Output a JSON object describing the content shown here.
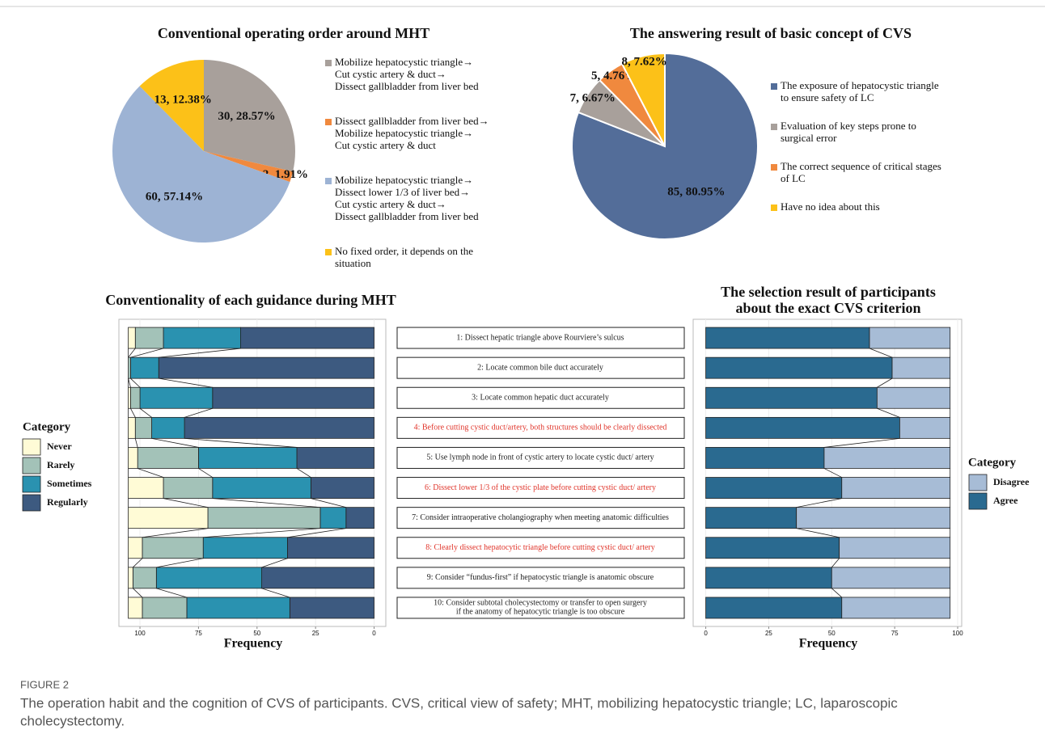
{
  "chart_data": [
    {
      "type": "pie",
      "title": "Conventional operating order around MHT",
      "categories": [
        [
          "Mobilize hepatocystic triangle→",
          "Cut cystic artery & duct→",
          "Dissect gallbladder from liver bed"
        ],
        [
          "Dissect gallbladder from liver bed→",
          "Mobilize hepatocystic triangle→",
          "Cut cystic artery & duct"
        ],
        [
          "Mobilize hepatocystic triangle→",
          "Dissect lower 1/3 of liver bed→",
          "Cut cystic artery & duct→",
          "Dissect gallbladder from liver bed"
        ],
        [
          "No fixed order, it depends on the",
          "situation"
        ]
      ],
      "values": [
        30,
        2,
        60,
        13
      ],
      "value_labels": [
        "30, 28.57%",
        "2, 1.91%",
        "60, 57.14%",
        "13, 12.38%"
      ],
      "colors": [
        "#a8a09b",
        "#f0893e",
        "#9db3d4",
        "#fcc118"
      ]
    },
    {
      "type": "pie",
      "title": "The answering result of basic concept of CVS",
      "categories": [
        [
          "The exposure of hepatocystic triangle",
          "to ensure safety of LC"
        ],
        [
          "Evaluation of key steps prone to",
          "surgical error"
        ],
        [
          "The correct sequence of critical stages",
          "of LC"
        ],
        [
          "Have no idea about this"
        ]
      ],
      "values": [
        85,
        7,
        5,
        8
      ],
      "value_labels": [
        "85, 80.95%",
        "7, 6.67%",
        "5, 4.76%",
        "8, 7.62%"
      ],
      "colors": [
        "#536d99",
        "#a8a09b",
        "#f0893e",
        "#fcc118"
      ]
    },
    {
      "type": "stacked_bar",
      "title": "Conventionality of each guidance during MHT",
      "x_label": "Frequency",
      "legend_title": "Category",
      "categories": [
        [
          "1: Dissect hepatic triangle above Rourviere’s sulcus"
        ],
        [
          "2: Locate common bile duct accurately"
        ],
        [
          "3: Locate common hepatic duct accurately"
        ],
        [
          "4: Before cutting cystic duct/artery, both structures should be clearly dissected"
        ],
        [
          "5: Use lymph node in front of cystic artery to locate cystic duct/ artery"
        ],
        [
          "6: Dissect lower 1/3 of the cystic plate before cutting cystic duct/ artery"
        ],
        [
          "7: Consider intraoperative cholangiography when meeting anatomic difficulties"
        ],
        [
          "8: Clearly dissect hepatocytic triangle before cutting cystic duct/ artery"
        ],
        [
          "9: Consider “fundus-first” if hepatocystic triangle is anatomic obscure"
        ],
        [
          "10: Consider subtotal cholecystectomy or transfer to open surgery",
          "if the anatomy of hepatocytic triangle is too obscure"
        ]
      ],
      "label_colors": [
        "#222",
        "#222",
        "#222",
        "#e0352b",
        "#222",
        "#e0352b",
        "#222",
        "#e0352b",
        "#222",
        "#222"
      ],
      "series": [
        {
          "name": "Never",
          "color": "#fffbd6",
          "values": [
            3,
            0,
            1,
            3,
            4,
            15,
            34,
            6,
            2,
            6
          ]
        },
        {
          "name": "Rarely",
          "color": "#a3c2b8",
          "values": [
            12,
            1,
            4,
            7,
            26,
            21,
            48,
            26,
            10,
            19
          ]
        },
        {
          "name": "Sometimes",
          "color": "#2a92b0",
          "values": [
            33,
            12,
            31,
            14,
            42,
            42,
            11,
            36,
            45,
            44
          ]
        },
        {
          "name": "Regularly",
          "color": "#3d5a80",
          "values": [
            57,
            92,
            69,
            81,
            33,
            27,
            12,
            37,
            48,
            36
          ]
        }
      ],
      "xlim": [
        109,
        -5
      ],
      "xticks": [
        100,
        75,
        50,
        25,
        0
      ],
      "grid": true
    },
    {
      "type": "stacked_bar",
      "title": [
        "The selection result of participants",
        "about the exact CVS criterion"
      ],
      "x_label": "Frequency",
      "legend_title": "Category",
      "series": [
        {
          "name": "Disagree",
          "color": "#a7bcd6",
          "values": [
            32,
            23,
            29,
            20,
            50,
            43,
            61,
            44,
            47,
            43
          ]
        },
        {
          "name": "Agree",
          "color": "#2a6a90",
          "values": [
            65,
            74,
            68,
            77,
            47,
            54,
            36,
            53,
            50,
            54
          ]
        }
      ],
      "xlim": [
        -5,
        101.6
      ],
      "xticks": [
        0,
        25,
        50,
        75,
        100
      ],
      "grid": true
    }
  ],
  "caption": {
    "label": "FIGURE 2",
    "lines": [
      "The operation habit and the cognition of CVS of participants. CVS, critical view of safety; MHT, mobilizing hepatocystic triangle; LC, laparoscopic",
      "cholecystectomy."
    ]
  }
}
